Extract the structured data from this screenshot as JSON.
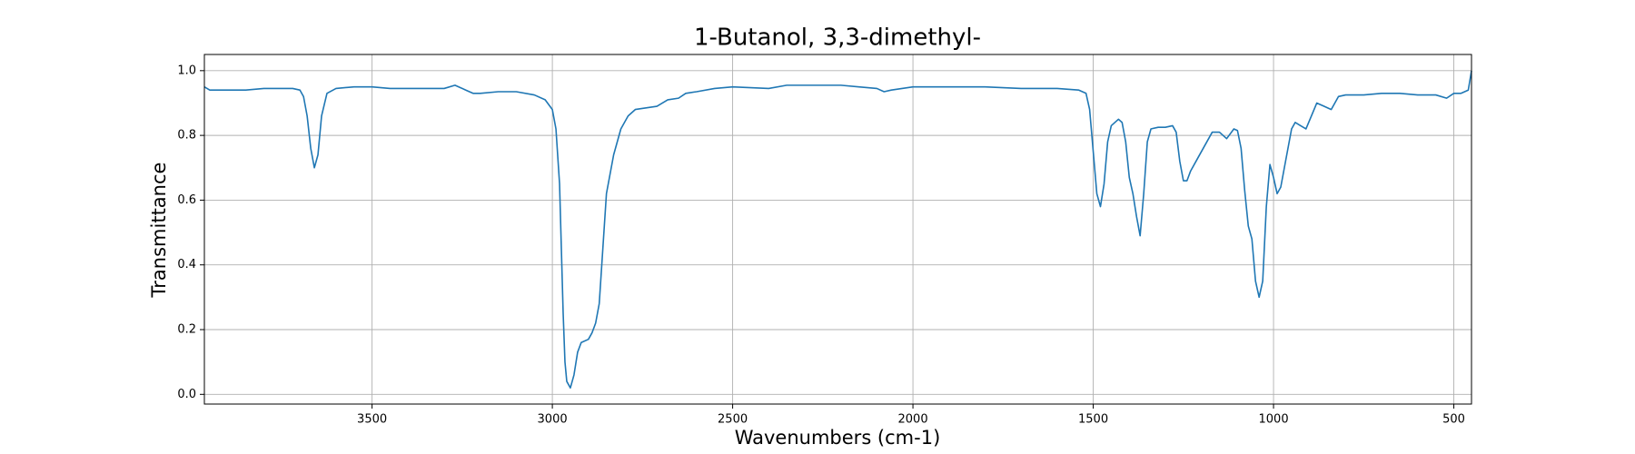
{
  "chart_data": {
    "type": "line",
    "title": "1-Butanol, 3,3-dimethyl-",
    "x_label": "Wavenumbers (cm-1)",
    "y_label": "Transmittance",
    "xlim": [
      3965,
      451
    ],
    "ylim": [
      -0.03,
      1.05
    ],
    "xticks": [
      3500,
      3000,
      2500,
      2000,
      1500,
      1000,
      500
    ],
    "yticks": [
      {
        "value": 0,
        "label": "0.0"
      },
      0.2,
      0.4,
      0.6,
      0.8,
      {
        "value": 1,
        "label": "1.0"
      }
    ],
    "grid": true,
    "series": [
      {
        "color": "#1f77b4",
        "x": [
          3965,
          3950,
          3900,
          3850,
          3800,
          3750,
          3720,
          3700,
          3690,
          3680,
          3670,
          3660,
          3650,
          3640,
          3625,
          3600,
          3550,
          3500,
          3450,
          3400,
          3350,
          3300,
          3270,
          3240,
          3220,
          3200,
          3150,
          3100,
          3050,
          3020,
          3000,
          2990,
          2980,
          2975,
          2970,
          2965,
          2960,
          2950,
          2940,
          2930,
          2920,
          2900,
          2890,
          2880,
          2870,
          2860,
          2850,
          2830,
          2810,
          2790,
          2770,
          2740,
          2710,
          2680,
          2650,
          2630,
          2600,
          2550,
          2500,
          2400,
          2350,
          2300,
          2200,
          2150,
          2100,
          2080,
          2060,
          2000,
          1900,
          1800,
          1700,
          1600,
          1540,
          1520,
          1510,
          1500,
          1490,
          1480,
          1470,
          1460,
          1450,
          1430,
          1420,
          1410,
          1400,
          1390,
          1380,
          1370,
          1360,
          1350,
          1340,
          1320,
          1300,
          1280,
          1270,
          1260,
          1250,
          1240,
          1230,
          1210,
          1190,
          1170,
          1150,
          1130,
          1110,
          1100,
          1090,
          1080,
          1070,
          1060,
          1050,
          1040,
          1030,
          1020,
          1010,
          1000,
          990,
          980,
          970,
          950,
          940,
          925,
          910,
          895,
          880,
          860,
          840,
          820,
          800,
          750,
          700,
          650,
          600,
          550,
          520,
          500,
          480,
          460,
          451
        ],
        "values": [
          0.95,
          0.94,
          0.94,
          0.94,
          0.945,
          0.945,
          0.945,
          0.94,
          0.92,
          0.86,
          0.76,
          0.7,
          0.74,
          0.86,
          0.93,
          0.945,
          0.95,
          0.95,
          0.945,
          0.945,
          0.945,
          0.945,
          0.955,
          0.94,
          0.93,
          0.93,
          0.935,
          0.935,
          0.925,
          0.91,
          0.88,
          0.82,
          0.65,
          0.45,
          0.25,
          0.1,
          0.04,
          0.02,
          0.06,
          0.13,
          0.16,
          0.17,
          0.19,
          0.22,
          0.28,
          0.45,
          0.62,
          0.74,
          0.82,
          0.86,
          0.88,
          0.885,
          0.89,
          0.91,
          0.915,
          0.93,
          0.935,
          0.945,
          0.95,
          0.945,
          0.955,
          0.955,
          0.955,
          0.95,
          0.945,
          0.935,
          0.94,
          0.95,
          0.95,
          0.95,
          0.945,
          0.945,
          0.94,
          0.93,
          0.88,
          0.75,
          0.62,
          0.58,
          0.65,
          0.78,
          0.83,
          0.85,
          0.84,
          0.78,
          0.67,
          0.62,
          0.55,
          0.49,
          0.62,
          0.78,
          0.82,
          0.825,
          0.825,
          0.83,
          0.81,
          0.72,
          0.66,
          0.66,
          0.69,
          0.73,
          0.77,
          0.81,
          0.81,
          0.79,
          0.82,
          0.815,
          0.76,
          0.63,
          0.52,
          0.48,
          0.35,
          0.3,
          0.35,
          0.58,
          0.71,
          0.67,
          0.62,
          0.64,
          0.7,
          0.82,
          0.84,
          0.83,
          0.82,
          0.86,
          0.9,
          0.89,
          0.88,
          0.92,
          0.925,
          0.925,
          0.93,
          0.93,
          0.925,
          0.925,
          0.915,
          0.93,
          0.93,
          0.94,
          1.0
        ]
      }
    ]
  }
}
